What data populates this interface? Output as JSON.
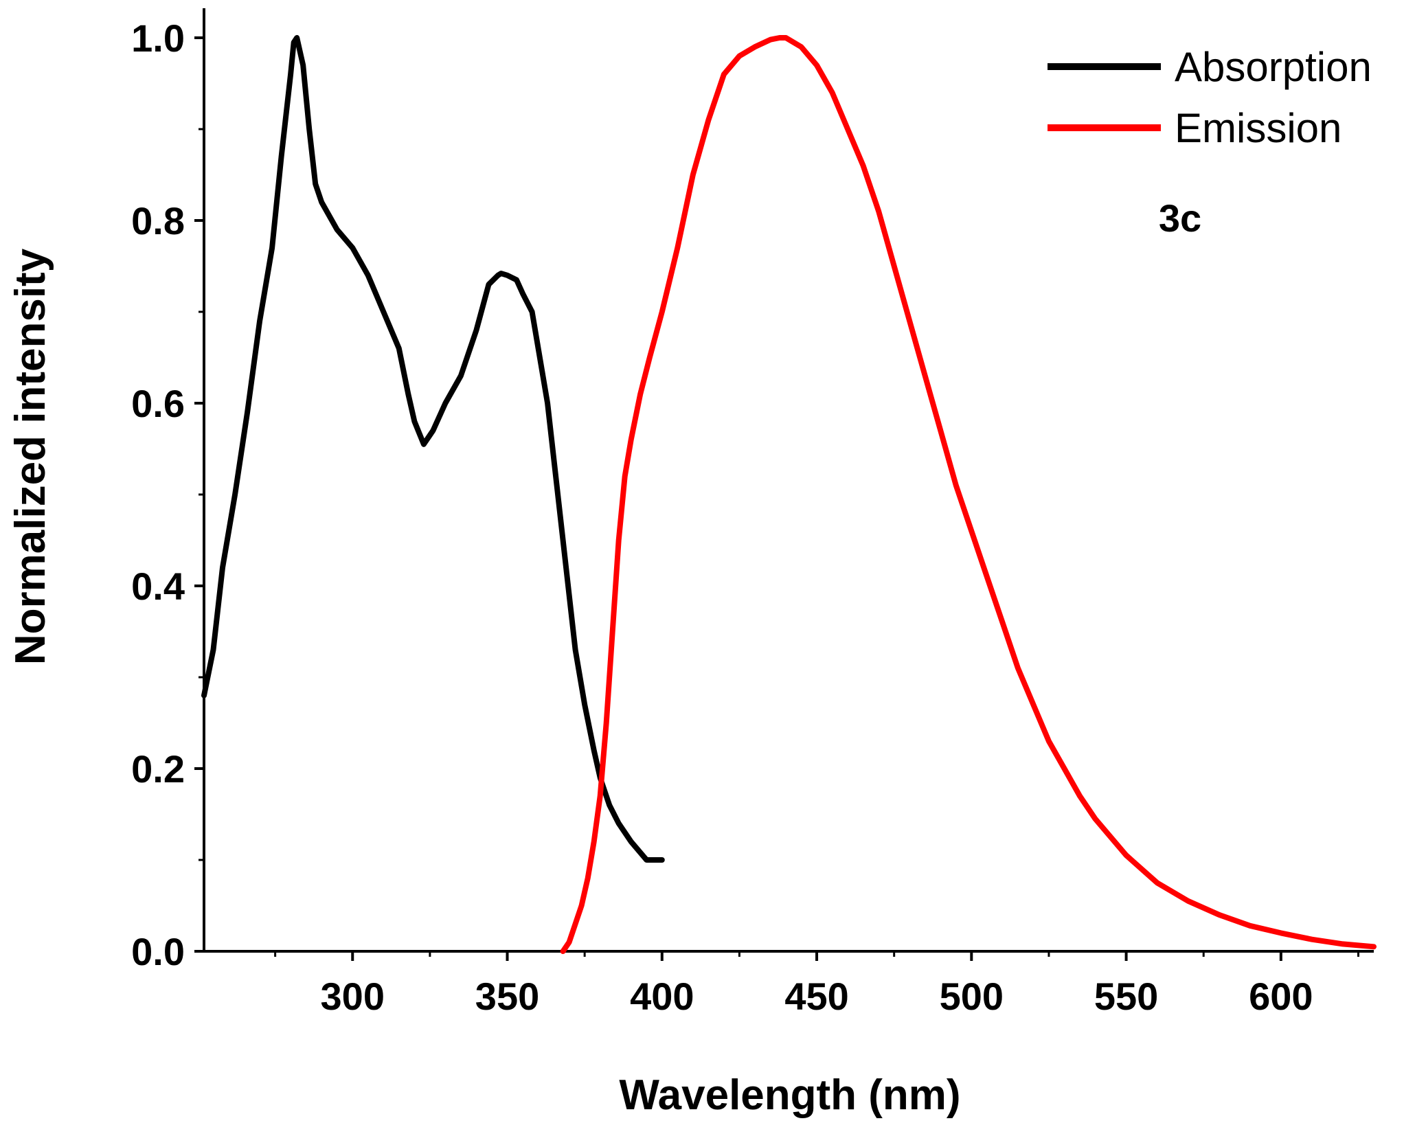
{
  "chart_data": {
    "type": "line",
    "title": "",
    "xlabel": "Wavelength (nm)",
    "ylabel": "Normalized intensity",
    "xlim": [
      252,
      630
    ],
    "ylim": [
      0.0,
      1.0
    ],
    "x_ticks": [
      300,
      350,
      400,
      450,
      500,
      550,
      600
    ],
    "x_tick_labels": [
      "300",
      "350",
      "400",
      "450",
      "500",
      "550",
      "600"
    ],
    "y_ticks": [
      0.0,
      0.2,
      0.4,
      0.6,
      0.8,
      1.0
    ],
    "y_tick_labels": [
      "0.0",
      "0.2",
      "0.4",
      "0.6",
      "0.8",
      "1.0"
    ],
    "grid": false,
    "legend_position": "top-right",
    "annotation": "3c",
    "colors": {
      "absorption": "#000000",
      "emission": "#ff0000"
    },
    "series": [
      {
        "name": "Absorption",
        "color": "#000000",
        "x": [
          252,
          255,
          258,
          262,
          266,
          270,
          274,
          277,
          280,
          281,
          282,
          284,
          286,
          288,
          290,
          295,
          300,
          305,
          310,
          315,
          318,
          320,
          323,
          326,
          330,
          335,
          340,
          344,
          347,
          348,
          350,
          353,
          355,
          358,
          360,
          363,
          366,
          369,
          372,
          375,
          378,
          380,
          383,
          386,
          390,
          395,
          400
        ],
        "values": [
          0.28,
          0.33,
          0.42,
          0.5,
          0.59,
          0.69,
          0.77,
          0.87,
          0.96,
          0.995,
          1.0,
          0.97,
          0.9,
          0.84,
          0.82,
          0.79,
          0.77,
          0.74,
          0.7,
          0.66,
          0.61,
          0.58,
          0.555,
          0.57,
          0.6,
          0.63,
          0.68,
          0.73,
          0.74,
          0.742,
          0.74,
          0.735,
          0.72,
          0.7,
          0.66,
          0.6,
          0.51,
          0.42,
          0.33,
          0.27,
          0.22,
          0.19,
          0.16,
          0.14,
          0.12,
          0.1,
          0.1
        ]
      },
      {
        "name": "Emission",
        "color": "#ff0000",
        "x": [
          368,
          370,
          372,
          374,
          376,
          378,
          380,
          382,
          384,
          386,
          388,
          390,
          393,
          396,
          400,
          405,
          410,
          415,
          420,
          425,
          430,
          435,
          438,
          440,
          445,
          450,
          455,
          460,
          465,
          470,
          475,
          480,
          485,
          490,
          495,
          500,
          505,
          510,
          515,
          520,
          525,
          530,
          535,
          540,
          545,
          550,
          560,
          570,
          580,
          590,
          600,
          610,
          620,
          630
        ],
        "values": [
          0.0,
          0.01,
          0.03,
          0.05,
          0.08,
          0.12,
          0.17,
          0.25,
          0.35,
          0.45,
          0.52,
          0.56,
          0.61,
          0.65,
          0.7,
          0.77,
          0.85,
          0.91,
          0.96,
          0.98,
          0.99,
          0.998,
          1.0,
          1.0,
          0.99,
          0.97,
          0.94,
          0.9,
          0.86,
          0.81,
          0.75,
          0.69,
          0.63,
          0.57,
          0.51,
          0.46,
          0.41,
          0.36,
          0.31,
          0.27,
          0.23,
          0.2,
          0.17,
          0.145,
          0.125,
          0.105,
          0.075,
          0.055,
          0.04,
          0.028,
          0.02,
          0.013,
          0.008,
          0.005
        ]
      }
    ]
  }
}
